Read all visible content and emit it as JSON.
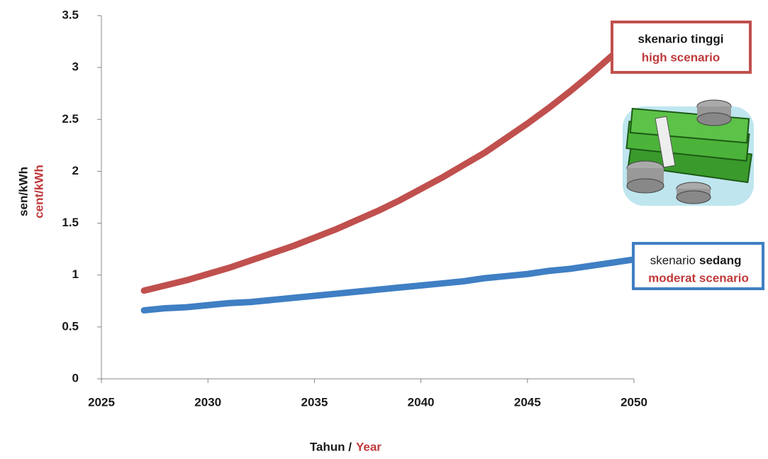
{
  "chart_data": {
    "type": "line",
    "y_label": {
      "line1": "sen/kWh",
      "line2": "cent/kWh"
    },
    "x_label": {
      "part1": "Tahun /",
      "part2": "Year"
    },
    "x": [
      2027,
      2028,
      2029,
      2030,
      2031,
      2032,
      2033,
      2034,
      2035,
      2036,
      2037,
      2038,
      2039,
      2040,
      2041,
      2042,
      2043,
      2044,
      2045,
      2046,
      2047,
      2048,
      2049,
      2050
    ],
    "series": [
      {
        "color": "#c0504d",
        "values": [
          0.85,
          0.9,
          0.95,
          1.01,
          1.07,
          1.14,
          1.21,
          1.28,
          1.36,
          1.44,
          1.53,
          1.62,
          1.72,
          1.83,
          1.94,
          2.06,
          2.18,
          2.32,
          2.46,
          2.61,
          2.77,
          2.94,
          3.12,
          3.31
        ]
      },
      {
        "color": "#3f7fc3",
        "values": [
          0.66,
          0.68,
          0.69,
          0.71,
          0.73,
          0.74,
          0.76,
          0.78,
          0.8,
          0.82,
          0.84,
          0.86,
          0.88,
          0.9,
          0.92,
          0.94,
          0.97,
          0.99,
          1.01,
          1.04,
          1.06,
          1.09,
          1.12,
          1.15
        ]
      }
    ],
    "annotations": [
      {
        "line1": "skenario tinggi",
        "line2": "high scenario"
      },
      {
        "line1a": "skenario",
        "line1b": "sedang",
        "line2": "moderat scenario"
      }
    ],
    "xlim": [
      2025,
      2050
    ],
    "xticks": [
      2025,
      2030,
      2035,
      2040,
      2045,
      2050
    ],
    "ylim": [
      0,
      3.5
    ],
    "yticks": [
      0,
      0.5,
      1,
      1.5,
      2,
      2.5,
      3,
      3.5
    ],
    "grid": false
  }
}
